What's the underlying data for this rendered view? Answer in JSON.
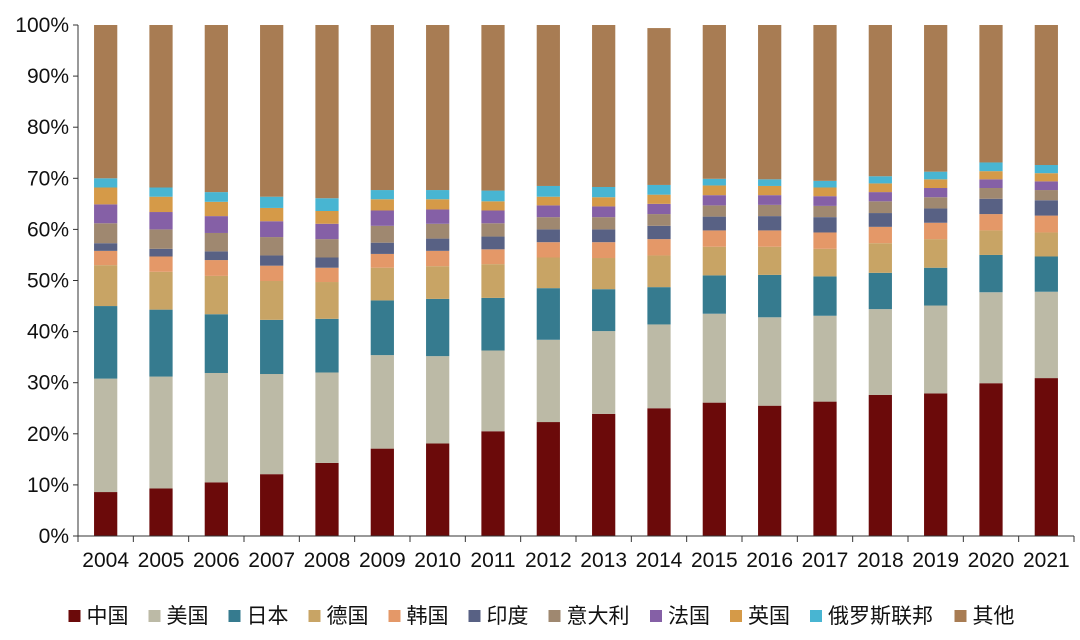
{
  "chart_data": {
    "type": "bar",
    "stacked": true,
    "title": "",
    "xlabel": "",
    "ylabel": "",
    "ylim": [
      0,
      100
    ],
    "yticks": [
      "0%",
      "10%",
      "20%",
      "30%",
      "40%",
      "50%",
      "60%",
      "70%",
      "80%",
      "90%",
      "100%"
    ],
    "grid": false,
    "legend_position": "bottom",
    "categories": [
      "2004",
      "2005",
      "2006",
      "2007",
      "2008",
      "2009",
      "2010",
      "2011",
      "2012",
      "2013",
      "2014",
      "2015",
      "2016",
      "2017",
      "2018",
      "2019",
      "2020",
      "2021"
    ],
    "series": [
      {
        "name": "中国",
        "color": "#6b0a0a",
        "values": [
          8.6,
          9.3,
          10.5,
          12.1,
          14.3,
          17.1,
          18.1,
          20.5,
          22.3,
          23.9,
          25.0,
          26.1,
          25.5,
          26.3,
          27.6,
          27.9,
          29.9,
          30.9
        ]
      },
      {
        "name": "美国",
        "color": "#bcbaa6",
        "values": [
          22.2,
          21.9,
          21.4,
          19.6,
          17.7,
          18.3,
          17.1,
          15.8,
          16.1,
          16.2,
          16.4,
          17.4,
          17.3,
          16.8,
          16.8,
          17.2,
          17.8,
          16.9
        ]
      },
      {
        "name": "日本",
        "color": "#367b8f",
        "values": [
          14.2,
          13.1,
          11.5,
          10.6,
          10.5,
          10.7,
          11.2,
          10.3,
          10.1,
          8.2,
          7.3,
          7.5,
          8.3,
          7.7,
          7.1,
          7.4,
          7.3,
          6.9
        ]
      },
      {
        "name": "德国",
        "color": "#c8a465",
        "values": [
          8.0,
          7.4,
          7.5,
          7.6,
          7.2,
          6.4,
          6.4,
          6.6,
          6.0,
          6.1,
          6.2,
          5.6,
          5.5,
          5.4,
          5.8,
          5.6,
          4.8,
          4.7
        ]
      },
      {
        "name": "韩国",
        "color": "#e49868",
        "values": [
          2.8,
          3.0,
          3.1,
          3.0,
          2.8,
          2.7,
          3.0,
          2.9,
          3.0,
          3.1,
          3.2,
          3.2,
          3.2,
          3.2,
          3.2,
          3.2,
          3.2,
          3.3
        ]
      },
      {
        "name": "印度",
        "color": "#586184",
        "values": [
          1.5,
          1.5,
          1.7,
          2.0,
          2.0,
          2.2,
          2.4,
          2.5,
          2.5,
          2.5,
          2.6,
          2.7,
          2.8,
          3.0,
          2.7,
          2.8,
          3.0,
          3.0
        ]
      },
      {
        "name": "意大利",
        "color": "#9f8870",
        "values": [
          3.9,
          3.8,
          3.6,
          3.6,
          3.6,
          3.3,
          2.9,
          2.6,
          2.4,
          2.4,
          2.3,
          2.2,
          2.2,
          2.2,
          2.3,
          2.2,
          2.1,
          2.0
        ]
      },
      {
        "name": "法国",
        "color": "#8560a6",
        "values": [
          3.7,
          3.4,
          3.3,
          3.1,
          3.0,
          3.0,
          2.8,
          2.5,
          2.3,
          2.1,
          2.0,
          2.0,
          1.9,
          1.9,
          1.8,
          1.8,
          1.7,
          1.7
        ]
      },
      {
        "name": "英国",
        "color": "#d59a48",
        "values": [
          3.3,
          3.0,
          2.8,
          2.6,
          2.5,
          2.2,
          2.0,
          1.8,
          1.7,
          1.8,
          1.8,
          1.9,
          1.8,
          1.7,
          1.7,
          1.7,
          1.6,
          1.6
        ]
      },
      {
        "name": "俄罗斯联邦",
        "color": "#48b5d2",
        "values": [
          1.8,
          1.8,
          1.9,
          2.2,
          2.5,
          1.8,
          1.8,
          2.1,
          2.1,
          2.0,
          1.9,
          1.3,
          1.3,
          1.3,
          1.4,
          1.5,
          1.7,
          1.6
        ]
      },
      {
        "name": "其他",
        "color": "#a87c53",
        "values": [
          30.0,
          31.8,
          32.7,
          33.6,
          33.9,
          32.3,
          32.3,
          32.4,
          31.5,
          31.7,
          30.7,
          30.1,
          30.2,
          30.5,
          29.6,
          28.7,
          26.9,
          27.4
        ]
      }
    ]
  }
}
